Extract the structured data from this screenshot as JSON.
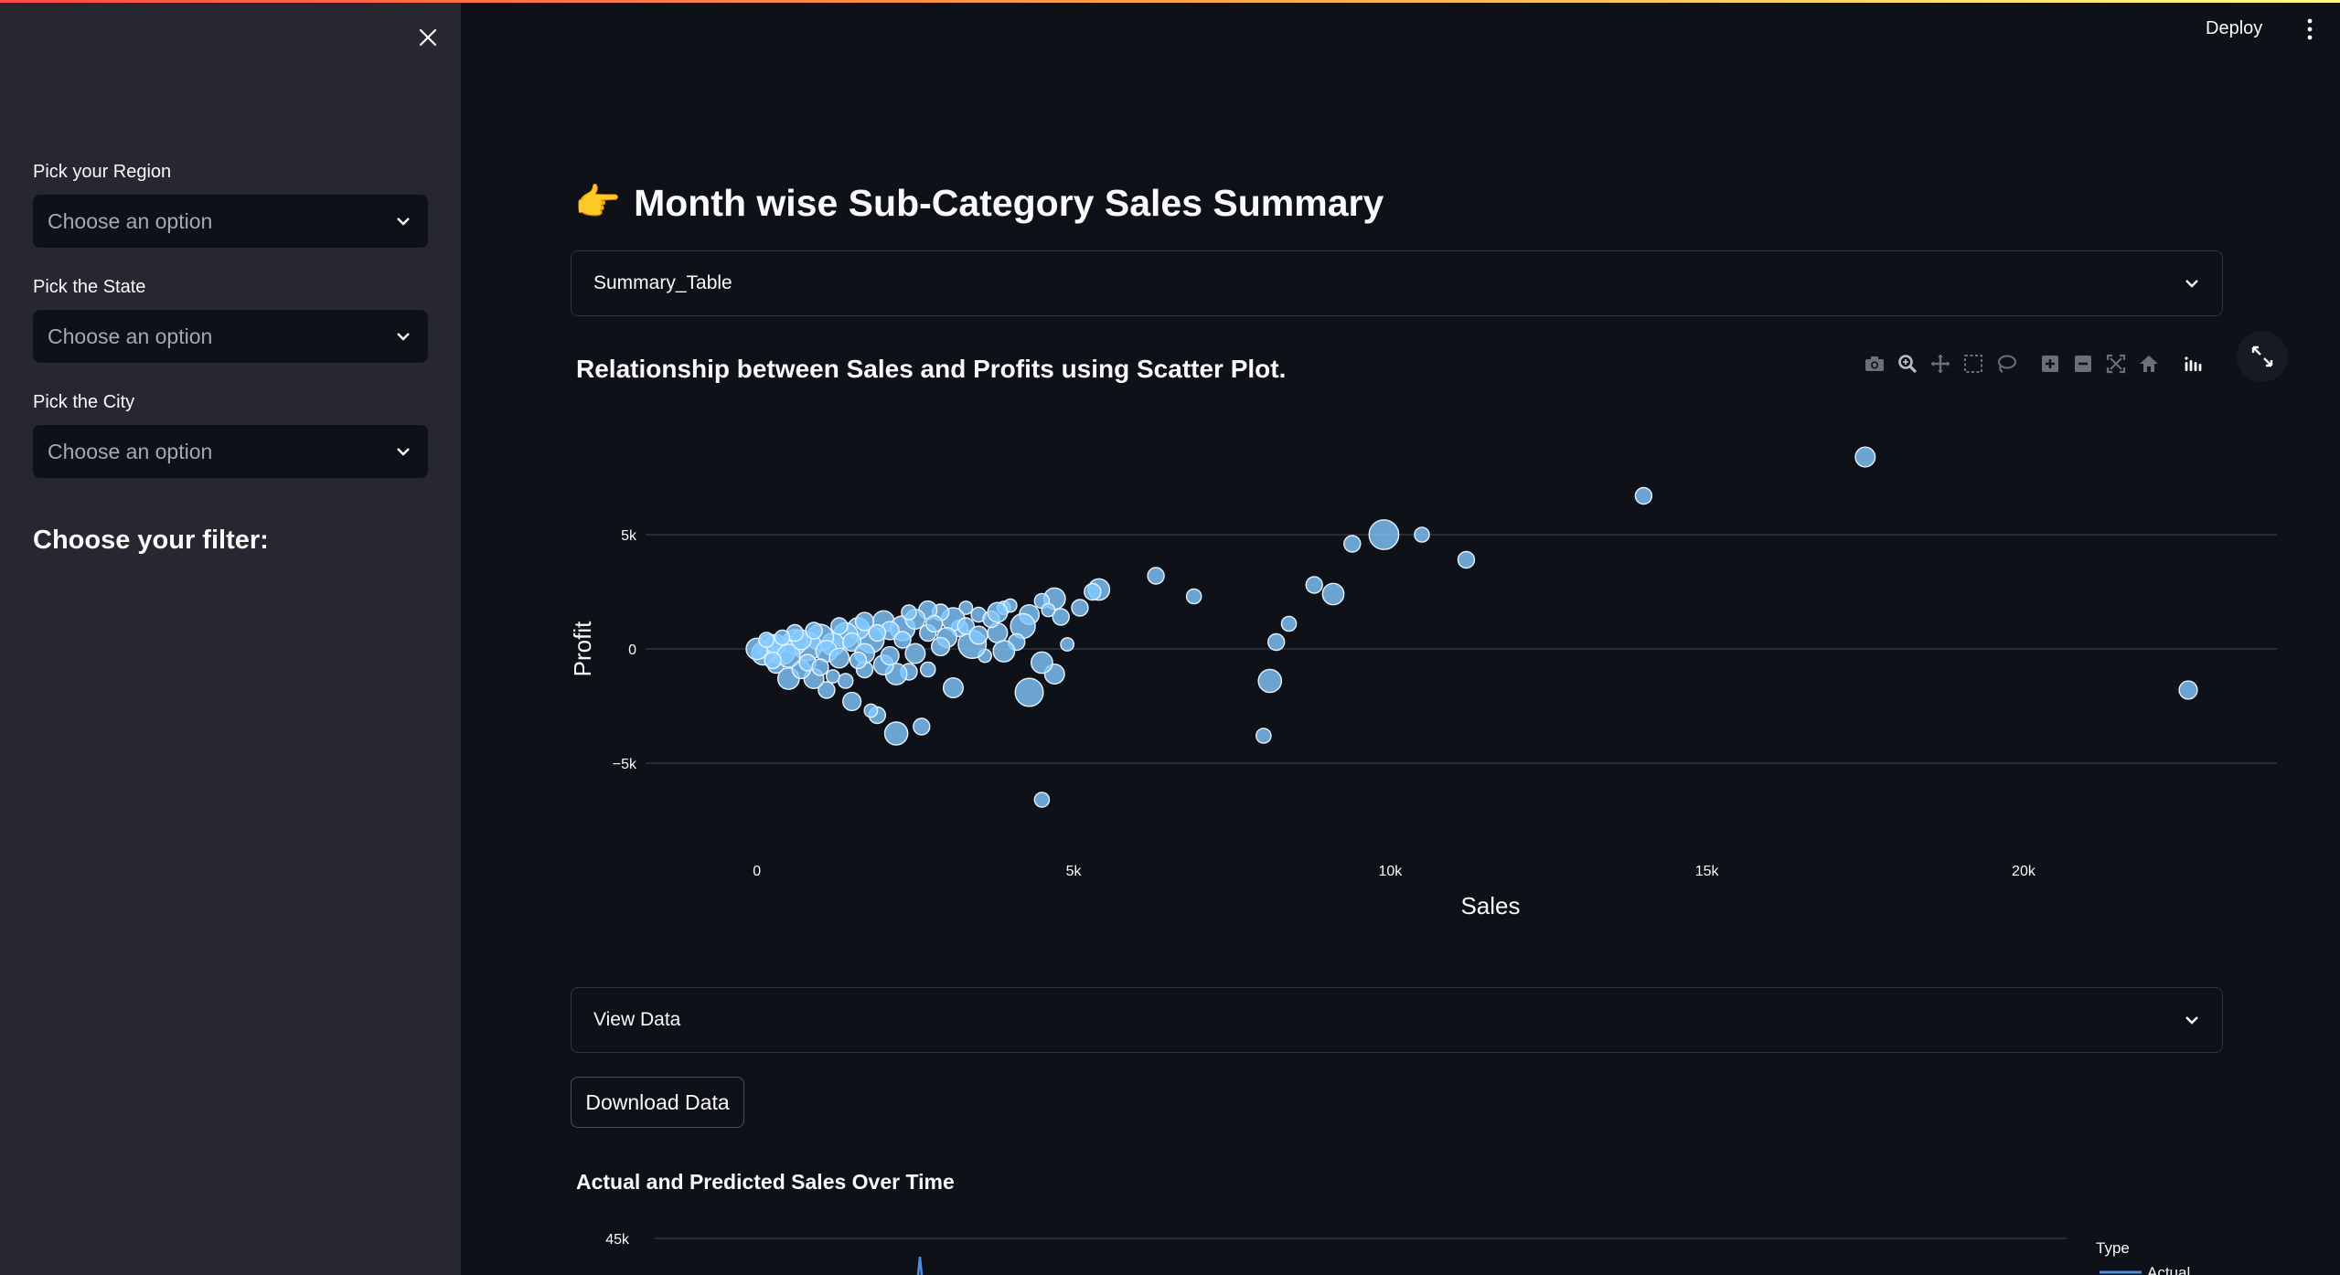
{
  "sidebar": {
    "close_icon": "close-icon",
    "filters": [
      {
        "label": "Pick your Region",
        "placeholder": "Choose an option"
      },
      {
        "label": "Pick the State",
        "placeholder": "Choose an option"
      },
      {
        "label": "Pick the City",
        "placeholder": "Choose an option"
      }
    ],
    "heading": "Choose your filter:"
  },
  "header": {
    "deploy_label": "Deploy",
    "menu_icon": "kebab-menu-icon"
  },
  "main": {
    "title_emoji": "👉",
    "title": "Month wise Sub-Category Sales Summary",
    "summary_expander": "Summary_Table",
    "scatter_title": "Relationship between Sales and Profits using Scatter Plot.",
    "view_data_expander": "View Data",
    "download_label": "Download Data",
    "line_chart_title": "Actual and Predicted Sales Over Time",
    "line_chart_ytick_top": "45k",
    "line_legend_title": "Type",
    "line_legend_first": "Actual",
    "modebar_icons": [
      "camera-icon",
      "zoom-icon",
      "pan-icon",
      "box-select-icon",
      "lasso-select-icon",
      "zoom-in-icon",
      "zoom-out-icon",
      "autoscale-icon",
      "reset-axes-icon",
      "plotly-logo-icon"
    ],
    "fullscreen_icon": "fullscreen-icon"
  },
  "colors": {
    "background": "#0e1117",
    "sidebar": "#262730",
    "marker": "#83c9ff"
  },
  "chart_data": {
    "type": "scatter",
    "xlabel": "Sales",
    "ylabel": "Profit",
    "x_ticks": [
      {
        "v": 0,
        "label": "0"
      },
      {
        "v": 5000,
        "label": "5k"
      },
      {
        "v": 10000,
        "label": "10k"
      },
      {
        "v": 15000,
        "label": "15k"
      },
      {
        "v": 20000,
        "label": "20k"
      }
    ],
    "y_ticks": [
      {
        "v": 5000,
        "label": "5k"
      },
      {
        "v": 0,
        "label": "0"
      },
      {
        "v": -5000,
        "label": "−5k"
      }
    ],
    "xlim": [
      -1700,
      24000
    ],
    "ylim": [
      -8400,
      10000
    ],
    "grid": true,
    "points": [
      {
        "x": 17500,
        "y": 8400,
        "s": 1.2
      },
      {
        "x": 14000,
        "y": 6700,
        "s": 1.0
      },
      {
        "x": 9900,
        "y": 5000,
        "s": 1.8
      },
      {
        "x": 10500,
        "y": 5000,
        "s": 0.9
      },
      {
        "x": 9400,
        "y": 4600,
        "s": 1.0
      },
      {
        "x": 11200,
        "y": 3900,
        "s": 1.0
      },
      {
        "x": 6300,
        "y": 3200,
        "s": 1.0
      },
      {
        "x": 6900,
        "y": 2300,
        "s": 0.9
      },
      {
        "x": 5400,
        "y": 2600,
        "s": 1.3
      },
      {
        "x": 5300,
        "y": 2500,
        "s": 1.0
      },
      {
        "x": 8800,
        "y": 2800,
        "s": 1.0
      },
      {
        "x": 9100,
        "y": 2400,
        "s": 1.3
      },
      {
        "x": 8400,
        "y": 1100,
        "s": 0.9
      },
      {
        "x": 8200,
        "y": 300,
        "s": 1.0
      },
      {
        "x": 8100,
        "y": -1400,
        "s": 1.4
      },
      {
        "x": 8000,
        "y": -3800,
        "s": 0.9
      },
      {
        "x": 22600,
        "y": -1800,
        "s": 1.1
      },
      {
        "x": 4500,
        "y": -6600,
        "s": 0.9
      },
      {
        "x": 4300,
        "y": -1900,
        "s": 1.7
      },
      {
        "x": 4700,
        "y": -1100,
        "s": 1.2
      },
      {
        "x": 4900,
        "y": 200,
        "s": 0.8
      },
      {
        "x": 4500,
        "y": -600,
        "s": 1.3
      },
      {
        "x": 4800,
        "y": 1400,
        "s": 1.0
      },
      {
        "x": 5100,
        "y": 1800,
        "s": 1.0
      },
      {
        "x": 4700,
        "y": 2200,
        "s": 1.3
      },
      {
        "x": 4500,
        "y": 2100,
        "s": 0.9
      },
      {
        "x": 4300,
        "y": 1500,
        "s": 1.2
      },
      {
        "x": 4600,
        "y": 1700,
        "s": 0.8
      },
      {
        "x": 4200,
        "y": 1000,
        "s": 1.5
      },
      {
        "x": 4100,
        "y": 300,
        "s": 1.0
      },
      {
        "x": 3900,
        "y": 1800,
        "s": 0.8
      },
      {
        "x": 3800,
        "y": 700,
        "s": 1.2
      },
      {
        "x": 3600,
        "y": -300,
        "s": 0.8
      },
      {
        "x": 3900,
        "y": -100,
        "s": 1.3
      },
      {
        "x": 3400,
        "y": 200,
        "s": 1.7
      },
      {
        "x": 3200,
        "y": 900,
        "s": 1.0
      },
      {
        "x": 3500,
        "y": 1500,
        "s": 0.9
      },
      {
        "x": 3300,
        "y": 1800,
        "s": 0.8
      },
      {
        "x": 3100,
        "y": 1300,
        "s": 1.4
      },
      {
        "x": 2900,
        "y": 1600,
        "s": 1.0
      },
      {
        "x": 2700,
        "y": 1700,
        "s": 1.1
      },
      {
        "x": 3000,
        "y": 500,
        "s": 1.2
      },
      {
        "x": 3100,
        "y": -1700,
        "s": 1.2
      },
      {
        "x": 2600,
        "y": -3400,
        "s": 1.0
      },
      {
        "x": 2200,
        "y": -3700,
        "s": 1.4
      },
      {
        "x": 1900,
        "y": -2900,
        "s": 1.0
      },
      {
        "x": 1500,
        "y": -2300,
        "s": 1.1
      },
      {
        "x": 1800,
        "y": -2700,
        "s": 0.8
      },
      {
        "x": 2400,
        "y": -1000,
        "s": 1.0
      },
      {
        "x": 2200,
        "y": -1100,
        "s": 1.3
      },
      {
        "x": 2700,
        "y": -900,
        "s": 0.9
      },
      {
        "x": 2000,
        "y": -700,
        "s": 1.2
      },
      {
        "x": 1700,
        "y": -900,
        "s": 1.0
      },
      {
        "x": 1400,
        "y": -1400,
        "s": 0.9
      },
      {
        "x": 1100,
        "y": -1800,
        "s": 1.0
      },
      {
        "x": 1200,
        "y": -1200,
        "s": 0.8
      },
      {
        "x": 900,
        "y": -1300,
        "s": 1.2
      },
      {
        "x": 500,
        "y": -1300,
        "s": 1.3
      },
      {
        "x": 700,
        "y": -900,
        "s": 1.1
      },
      {
        "x": 300,
        "y": -700,
        "s": 1.0
      },
      {
        "x": 2000,
        "y": 1200,
        "s": 1.3
      },
      {
        "x": 2300,
        "y": 900,
        "s": 1.5
      },
      {
        "x": 2500,
        "y": 1300,
        "s": 1.2
      },
      {
        "x": 2100,
        "y": 800,
        "s": 1.1
      },
      {
        "x": 1800,
        "y": 400,
        "s": 1.6
      },
      {
        "x": 1600,
        "y": 900,
        "s": 1.3
      },
      {
        "x": 1400,
        "y": 600,
        "s": 1.5
      },
      {
        "x": 1200,
        "y": 200,
        "s": 1.4
      },
      {
        "x": 1000,
        "y": 500,
        "s": 1.6
      },
      {
        "x": 800,
        "y": 100,
        "s": 1.7
      },
      {
        "x": 600,
        "y": 300,
        "s": 1.5
      },
      {
        "x": 400,
        "y": -100,
        "s": 1.6
      },
      {
        "x": 200,
        "y": 100,
        "s": 1.5
      },
      {
        "x": 100,
        "y": -200,
        "s": 1.4
      },
      {
        "x": 0,
        "y": 0,
        "s": 1.3
      },
      {
        "x": 300,
        "y": 200,
        "s": 1.2
      },
      {
        "x": 500,
        "y": -300,
        "s": 1.4
      },
      {
        "x": 700,
        "y": 400,
        "s": 1.2
      },
      {
        "x": 1100,
        "y": -100,
        "s": 1.3
      },
      {
        "x": 1300,
        "y": -400,
        "s": 1.2
      },
      {
        "x": 1500,
        "y": 300,
        "s": 1.1
      },
      {
        "x": 1700,
        "y": -200,
        "s": 1.2
      },
      {
        "x": 1900,
        "y": 700,
        "s": 1.0
      },
      {
        "x": 2100,
        "y": -300,
        "s": 1.1
      },
      {
        "x": 2300,
        "y": 400,
        "s": 1.0
      },
      {
        "x": 2500,
        "y": -200,
        "s": 1.2
      },
      {
        "x": 2700,
        "y": 700,
        "s": 1.0
      },
      {
        "x": 2900,
        "y": 100,
        "s": 1.1
      },
      {
        "x": 3300,
        "y": 1000,
        "s": 1.0
      },
      {
        "x": 3500,
        "y": 600,
        "s": 1.1
      },
      {
        "x": 3700,
        "y": 1300,
        "s": 1.0
      },
      {
        "x": 4000,
        "y": 1900,
        "s": 0.8
      },
      {
        "x": 3800,
        "y": 1600,
        "s": 1.2
      },
      {
        "x": 1300,
        "y": 1000,
        "s": 1.0
      },
      {
        "x": 1700,
        "y": 1200,
        "s": 1.1
      },
      {
        "x": 900,
        "y": 800,
        "s": 1.0
      },
      {
        "x": 600,
        "y": 700,
        "s": 1.0
      },
      {
        "x": 400,
        "y": 500,
        "s": 0.9
      },
      {
        "x": 150,
        "y": 400,
        "s": 0.9
      },
      {
        "x": 250,
        "y": -500,
        "s": 1.0
      },
      {
        "x": 800,
        "y": -600,
        "s": 1.0
      },
      {
        "x": 1000,
        "y": -800,
        "s": 1.0
      },
      {
        "x": 1600,
        "y": -500,
        "s": 1.0
      },
      {
        "x": 2400,
        "y": 1600,
        "s": 0.9
      },
      {
        "x": 2800,
        "y": 1100,
        "s": 1.0
      }
    ]
  }
}
